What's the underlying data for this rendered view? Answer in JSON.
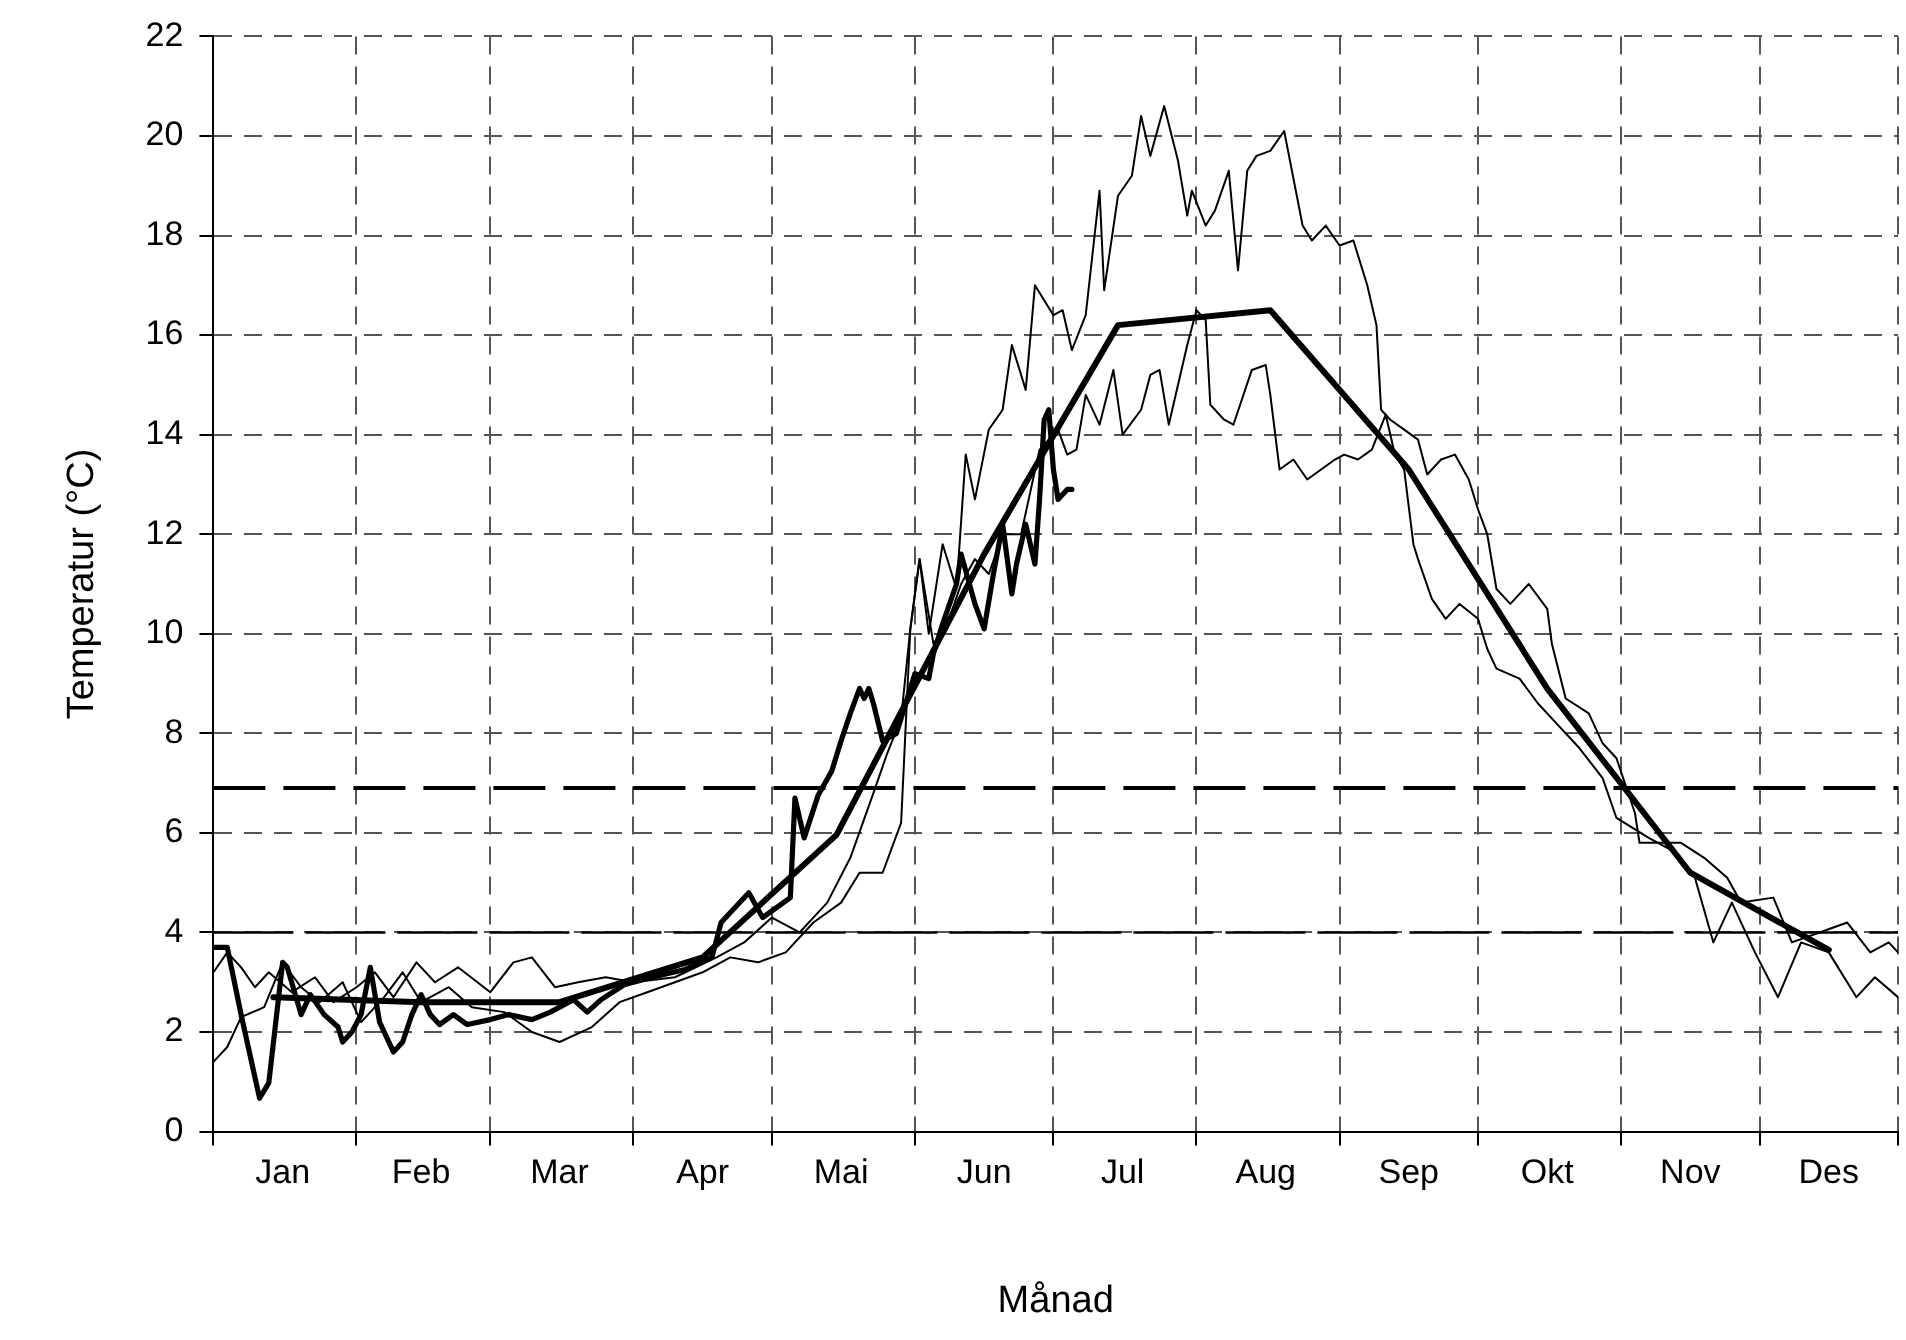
{
  "chart_data": {
    "type": "line",
    "xlabel": "Månad",
    "ylabel": "Temperatur (°C)",
    "xlim": [
      "--01-01",
      "--12-31"
    ],
    "xticks": [
      {
        "value": "--01-01",
        "label": null
      },
      {
        "value": "--01-16",
        "label": "Jan"
      },
      {
        "value": "--02-01",
        "label": null
      },
      {
        "value": "--02-15",
        "label": "Feb"
      },
      {
        "value": "--03-01",
        "label": null
      },
      {
        "value": "--03-16",
        "label": "Mar"
      },
      {
        "value": "--04-01",
        "label": null
      },
      {
        "value": "--04-16",
        "label": "Apr"
      },
      {
        "value": "--05-01",
        "label": null
      },
      {
        "value": "--05-16",
        "label": "Mai"
      },
      {
        "value": "--06-01",
        "label": null
      },
      {
        "value": "--06-16",
        "label": "Jun"
      },
      {
        "value": "--07-01",
        "label": null
      },
      {
        "value": "--07-16",
        "label": "Jul"
      },
      {
        "value": "--08-01",
        "label": null
      },
      {
        "value": "--08-16",
        "label": "Aug"
      },
      {
        "value": "--09-01",
        "label": null
      },
      {
        "value": "--09-16",
        "label": "Sep"
      },
      {
        "value": "--10-01",
        "label": null
      },
      {
        "value": "--10-16",
        "label": "Okt"
      },
      {
        "value": "--11-01",
        "label": null
      },
      {
        "value": "--11-16",
        "label": "Nov"
      },
      {
        "value": "--12-01",
        "label": null
      },
      {
        "value": "--12-16",
        "label": "Des"
      },
      {
        "value": "--12-31",
        "label": null
      }
    ],
    "ylim": [
      0,
      22
    ],
    "yticks": [
      0,
      2,
      4,
      6,
      8,
      10,
      12,
      14,
      16,
      18,
      20,
      22
    ],
    "grid": true,
    "legend": false,
    "marker": "none",
    "line_style": "solid",
    "ref_lines": [
      {
        "axis": "y",
        "value": 6.9,
        "label": null,
        "color": "#000000",
        "line_style": "dashed"
      },
      {
        "axis": "y",
        "value": 4.0,
        "label": null,
        "color": "#000000",
        "line_style": "dashed"
      }
    ],
    "series": [
      {
        "color": "#000000",
        "x": [
          "--01-01",
          "--01-04",
          "--01-07",
          "--01-10",
          "--01-13",
          "--01-18",
          "--01-23",
          "--01-27",
          "--02-01",
          "--02-05",
          "--02-09",
          "--02-14",
          "--02-18",
          "--02-23",
          "--03-01",
          "--03-06",
          "--03-10",
          "--03-15",
          "--03-20",
          "--03-26",
          "--04-01",
          "--04-10",
          "--04-19",
          "--04-25",
          "--05-01",
          "--05-07",
          "--05-13",
          "--05-18",
          "--05-23",
          "--05-26",
          "--05-29",
          "--05-31",
          "--06-02",
          "--06-04",
          "--06-07",
          "--06-10",
          "--06-12",
          "--06-14",
          "--06-17",
          "--06-20",
          "--06-22",
          "--06-25",
          "--06-27",
          "--06-29",
          "--07-01",
          "--07-03",
          "--07-05",
          "--07-08",
          "--07-11",
          "--07-12",
          "--07-15",
          "--07-18",
          "--07-20",
          "--07-22",
          "--07-25",
          "--07-28",
          "--07-30",
          "--07-31",
          "--08-03",
          "--08-05",
          "--08-08",
          "--08-10",
          "--08-12",
          "--08-14",
          "--08-17",
          "--08-20",
          "--08-24",
          "--08-26",
          "--08-29",
          "--09-01",
          "--09-04",
          "--09-07",
          "--09-09",
          "--09-10",
          "--09-12",
          "--09-15",
          "--09-18",
          "--09-20",
          "--09-23",
          "--09-26",
          "--09-29",
          "--10-01",
          "--10-03",
          "--10-05",
          "--10-08",
          "--10-12",
          "--10-16",
          "--10-17",
          "--10-20",
          "--10-25",
          "--10-28",
          "--10-31",
          "--11-04",
          "--11-05",
          "--11-14",
          "--11-19",
          "--11-24",
          "--11-27",
          "--12-04",
          "--12-08",
          "--12-14",
          "--12-20",
          "--12-25",
          "--12-29",
          "--12-31"
        ],
        "values": [
          3.2,
          3.6,
          3.3,
          2.9,
          3.2,
          2.8,
          3.1,
          2.6,
          2.9,
          3.2,
          2.7,
          3.4,
          3.0,
          3.3,
          2.8,
          3.4,
          3.5,
          2.9,
          3.0,
          3.1,
          3.0,
          3.1,
          3.5,
          3.8,
          4.3,
          4.0,
          4.6,
          5.5,
          6.8,
          7.6,
          8.3,
          10.1,
          11.5,
          10.0,
          11.8,
          10.9,
          13.6,
          12.7,
          14.1,
          14.5,
          15.8,
          14.9,
          17.0,
          16.7,
          16.4,
          16.5,
          15.7,
          16.4,
          18.9,
          16.9,
          18.8,
          19.2,
          20.4,
          19.6,
          20.6,
          19.5,
          18.4,
          18.9,
          18.2,
          18.5,
          19.3,
          17.3,
          19.3,
          19.6,
          19.7,
          20.1,
          18.2,
          17.9,
          18.2,
          17.8,
          17.9,
          17.0,
          16.2,
          14.5,
          14.3,
          14.1,
          13.9,
          13.2,
          13.5,
          13.6,
          13.1,
          12.5,
          12.0,
          10.9,
          10.6,
          11.0,
          10.5,
          9.8,
          8.7,
          8.4,
          7.8,
          7.5,
          6.4,
          5.8,
          5.8,
          5.5,
          5.1,
          4.6,
          4.7,
          3.8,
          4.0,
          4.2,
          3.6,
          3.8,
          3.6
        ]
      },
      {
        "color": "#000000",
        "x": [
          "--01-01",
          "--01-04",
          "--01-07",
          "--01-12",
          "--01-16",
          "--01-20",
          "--01-24",
          "--01-29",
          "--02-02",
          "--02-07",
          "--02-11",
          "--02-15",
          "--02-21",
          "--02-26",
          "--03-04",
          "--03-10",
          "--03-16",
          "--03-23",
          "--03-29",
          "--04-04",
          "--04-10",
          "--04-16",
          "--04-22",
          "--04-28",
          "--05-04",
          "--05-10",
          "--05-16",
          "--05-20",
          "--05-25",
          "--05-29",
          "--05-31",
          "--06-02",
          "--06-05",
          "--06-08",
          "--06-11",
          "--06-14",
          "--06-17",
          "--06-20",
          "--06-24",
          "--06-28",
          "--07-02",
          "--07-04",
          "--07-06",
          "--07-08",
          "--07-11",
          "--07-14",
          "--07-16",
          "--07-20",
          "--07-22",
          "--07-24",
          "--07-26",
          "--07-30",
          "--08-01",
          "--08-03",
          "--08-04",
          "--08-07",
          "--08-09",
          "--08-13",
          "--08-16",
          "--08-17",
          "--08-19",
          "--08-22",
          "--08-25",
          "--08-28",
          "--08-31",
          "--09-02",
          "--09-05",
          "--09-08",
          "--09-11",
          "--09-13",
          "--09-15",
          "--09-17",
          "--09-18",
          "--09-21",
          "--09-24",
          "--09-27",
          "--10-01",
          "--10-03",
          "--10-05",
          "--10-10",
          "--10-14",
          "--10-19",
          "--10-23",
          "--10-28",
          "--10-31",
          "--11-07",
          "--11-13",
          "--11-17",
          "--11-21",
          "--11-25",
          "--11-30",
          "--12-05",
          "--12-10",
          "--12-16",
          "--12-22",
          "--12-26",
          "--12-31"
        ],
        "values": [
          1.4,
          1.7,
          2.3,
          2.5,
          3.4,
          2.9,
          2.6,
          3.0,
          2.2,
          2.7,
          3.2,
          2.6,
          2.9,
          2.5,
          2.4,
          2.0,
          1.8,
          2.1,
          2.6,
          2.8,
          3.0,
          3.2,
          3.5,
          3.4,
          3.6,
          4.2,
          4.6,
          5.2,
          5.2,
          6.2,
          10.1,
          11.5,
          9.8,
          10.2,
          11.0,
          11.5,
          11.2,
          12.0,
          12.0,
          13.7,
          14.1,
          13.6,
          13.7,
          14.8,
          14.2,
          15.3,
          14.0,
          14.5,
          15.2,
          15.3,
          14.2,
          15.8,
          16.5,
          16.3,
          14.6,
          14.3,
          14.2,
          15.3,
          15.4,
          14.8,
          13.3,
          13.5,
          13.1,
          13.3,
          13.5,
          13.6,
          13.5,
          13.7,
          14.4,
          13.6,
          13.3,
          11.8,
          11.5,
          10.7,
          10.3,
          10.6,
          10.3,
          9.7,
          9.3,
          9.1,
          8.6,
          8.1,
          7.7,
          7.1,
          6.3,
          5.9,
          5.6,
          5.1,
          3.8,
          4.6,
          3.6,
          2.7,
          3.8,
          3.6,
          2.7,
          3.1,
          2.7
        ]
      },
      {
        "color": "#000000",
        "x": [
          "--01-01",
          "--01-04",
          "--01-07",
          "--01-11",
          "--01-13",
          "--01-16",
          "--01-17",
          "--01-20",
          "--01-22",
          "--01-25",
          "--01-28",
          "--01-29",
          "--01-31",
          "--02-02",
          "--02-04",
          "--02-06",
          "--02-09",
          "--02-11",
          "--02-13",
          "--02-15",
          "--02-17",
          "--02-19",
          "--02-22",
          "--02-25",
          "--03-01",
          "--03-05",
          "--03-10",
          "--03-14",
          "--03-19",
          "--03-22",
          "--03-25",
          "--03-30",
          "--04-05",
          "--04-12",
          "--04-18",
          "--04-20",
          "--04-26",
          "--04-29",
          "--05-02",
          "--05-05",
          "--05-06",
          "--05-08",
          "--05-11",
          "--05-14",
          "--05-16",
          "--05-18",
          "--05-20",
          "--05-21",
          "--05-22",
          "--05-23",
          "--05-25",
          "--05-28",
          "--05-30",
          "--06-01",
          "--06-04",
          "--06-05",
          "--06-07",
          "--06-10",
          "--06-11",
          "--06-14",
          "--06-16",
          "--06-18",
          "--06-20",
          "--06-22",
          "--06-23",
          "--06-25",
          "--06-27",
          "--06-28",
          "--06-29",
          "--06-30",
          "--07-01",
          "--07-02",
          "--07-04",
          "--07-05"
        ],
        "values": [
          3.7,
          3.7,
          2.35,
          0.67,
          0.98,
          3.4,
          3.3,
          2.35,
          2.75,
          2.35,
          2.1,
          1.8,
          2.0,
          2.35,
          3.3,
          2.2,
          1.6,
          1.8,
          2.35,
          2.75,
          2.35,
          2.15,
          2.35,
          2.15,
          2.25,
          2.35,
          2.25,
          2.4,
          2.65,
          2.4,
          2.65,
          2.95,
          3.1,
          3.25,
          3.5,
          4.2,
          4.8,
          4.3,
          4.5,
          4.7,
          6.7,
          5.9,
          6.75,
          7.25,
          7.85,
          8.4,
          8.9,
          8.7,
          8.9,
          8.6,
          7.85,
          8.0,
          8.6,
          9.2,
          9.1,
          9.6,
          10.2,
          11.0,
          11.6,
          10.6,
          10.1,
          11.2,
          12.2,
          10.8,
          11.4,
          12.2,
          11.4,
          12.7,
          14.3,
          14.5,
          13.3,
          12.7,
          12.9,
          12.9
        ]
      },
      {
        "color": "#000000",
        "x": [
          "--01-14",
          "--02-15",
          "--03-16",
          "--04-16",
          "--05-15",
          "--06-16",
          "--07-15",
          "--08-17",
          "--09-16",
          "--10-16",
          "--11-16",
          "--12-16"
        ],
        "values": [
          2.7,
          2.6,
          2.6,
          3.5,
          5.96,
          11.6,
          16.2,
          16.5,
          13.3,
          8.9,
          5.2,
          3.65
        ]
      }
    ]
  }
}
